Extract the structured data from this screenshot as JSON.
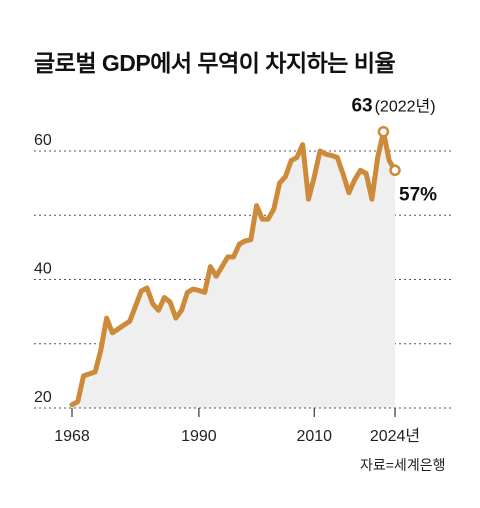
{
  "title": "글로벌 GDP에서 무역이 차지하는 비율",
  "source": "자료=세계은행",
  "colors": {
    "line": "#cd8a3a",
    "area": "#efefef",
    "grid": "#555555"
  },
  "chart_data": {
    "type": "area",
    "title": "글로벌 GDP에서 무역이 차지하는 비율",
    "xlabel": "",
    "ylabel": "",
    "xlim": [
      1968,
      2024
    ],
    "ylim": [
      20,
      70
    ],
    "yticks": [
      20,
      30,
      40,
      50,
      60
    ],
    "ytick_labels": [
      "20",
      "",
      "40",
      "",
      "60"
    ],
    "xtick_labels": [
      {
        "x": 1968,
        "label": "1968"
      },
      {
        "x": 1990,
        "label": "1990"
      },
      {
        "x": 2010,
        "label": "2010"
      },
      {
        "x": 2024,
        "label": "2024년"
      }
    ],
    "grid": true,
    "series": [
      {
        "x": [
          1968,
          1969,
          1970,
          1971,
          1972,
          1973,
          1974,
          1975,
          1976,
          1977,
          1978,
          1979,
          1980,
          1981,
          1982,
          1983,
          1984,
          1985,
          1986,
          1987,
          1988,
          1989,
          1990,
          1991,
          1992,
          1993,
          1994,
          1995,
          1996,
          1997,
          1998,
          1999,
          2000,
          2001,
          2002,
          2003,
          2004,
          2005,
          2006,
          2007,
          2008,
          2009,
          2010,
          2011,
          2012,
          2013,
          2014,
          2015,
          2016,
          2017,
          2018,
          2019,
          2020,
          2021,
          2022,
          2023,
          2024
        ],
        "y": [
          20.5,
          21.0,
          25.0,
          25.3,
          25.6,
          29.0,
          34.0,
          31.7,
          32.3,
          32.9,
          33.5,
          35.8,
          38.2,
          38.7,
          36.2,
          35.2,
          37.2,
          36.5,
          34.0,
          35.2,
          38.0,
          38.5,
          38.3,
          38.0,
          42.0,
          40.5,
          42.0,
          43.5,
          43.5,
          45.5,
          46.0,
          46.2,
          51.5,
          49.4,
          49.4,
          51.0,
          55.0,
          56.0,
          58.5,
          59.0,
          61.0,
          52.5,
          56.0,
          60.0,
          59.5,
          59.3,
          59.0,
          56.4,
          53.5,
          55.5,
          57.0,
          56.5,
          52.5,
          59.0,
          63.0,
          58.5,
          57.0
        ]
      }
    ],
    "annotations": [
      {
        "x": 2022,
        "y": 63,
        "value": "63",
        "note": "(2022년)"
      },
      {
        "x": 2024,
        "y": 57,
        "value": "57%"
      }
    ]
  }
}
